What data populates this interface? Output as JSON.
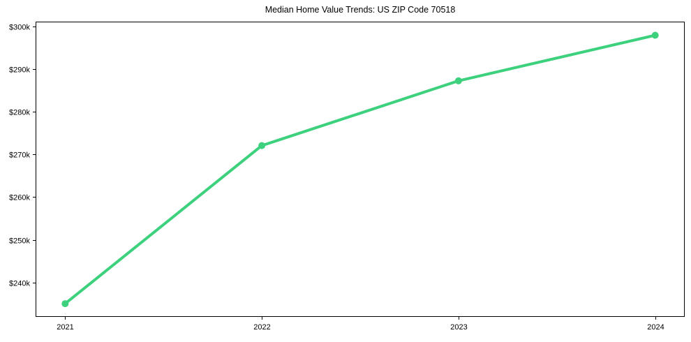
{
  "chart_data": {
    "type": "line",
    "title": "Median Home Value Trends: US ZIP Code 70518",
    "x": [
      2021,
      2022,
      2023,
      2024
    ],
    "values": [
      235000,
      272100,
      287300,
      298000
    ],
    "xtick_values": [
      2021,
      2022,
      2023,
      2024
    ],
    "xtick_labels": [
      "2021",
      "2022",
      "2023",
      "2024"
    ],
    "ytick_values": [
      240000,
      250000,
      260000,
      270000,
      280000,
      290000,
      300000
    ],
    "ytick_labels": [
      "$240k",
      "$250k",
      "$260k",
      "$270k",
      "$280k",
      "$290k",
      "$300k"
    ],
    "xlim": [
      2020.85,
      2024.15
    ],
    "ylim": [
      231900,
      301200
    ],
    "grid": false,
    "legend": "none",
    "line_color": "#3dd17e",
    "marker": "circle",
    "frame_color": "#000000",
    "text_color": "#000000",
    "background": "#ffffff"
  }
}
